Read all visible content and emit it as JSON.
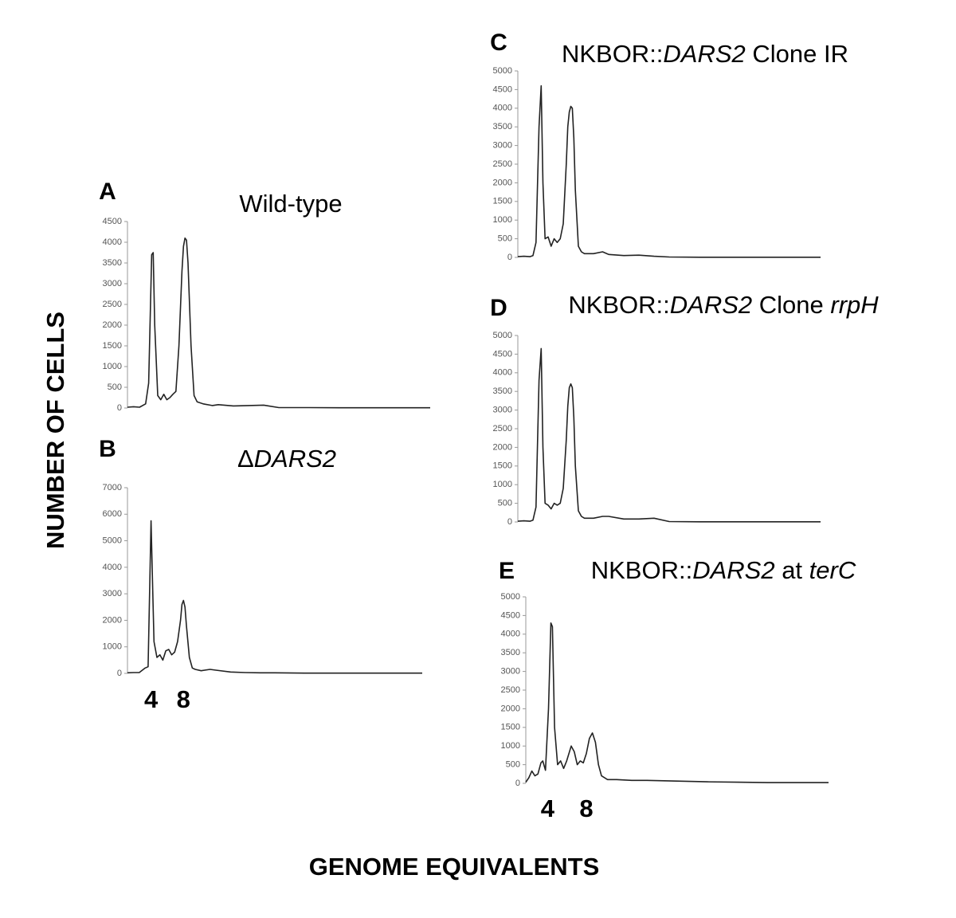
{
  "figure": {
    "ylabel": "NUMBER OF CELLS",
    "xlabel": "GENOME EQUIVALENTS"
  },
  "chart_data": [
    {
      "type": "line",
      "panel": "A",
      "title": [
        {
          "text": "Wild-type"
        }
      ],
      "xlim": [
        0,
        100
      ],
      "ylim": [
        0,
        4500
      ],
      "yticks": [
        0,
        500,
        1000,
        1500,
        2000,
        2500,
        3000,
        3500,
        4000,
        4500
      ],
      "color": "#222222",
      "x": [
        0,
        2,
        4,
        6,
        7,
        8,
        8.5,
        9,
        10,
        11,
        12,
        13,
        14,
        15,
        16,
        17,
        18,
        18.5,
        19,
        19.5,
        20,
        21,
        22,
        23,
        25,
        28,
        30,
        35,
        40,
        45,
        50,
        60,
        70,
        80,
        90,
        100
      ],
      "values": [
        20,
        30,
        20,
        100,
        600,
        3700,
        3750,
        2000,
        300,
        200,
        330,
        200,
        250,
        330,
        400,
        1500,
        3300,
        3900,
        4100,
        4050,
        3500,
        1500,
        300,
        150,
        100,
        60,
        80,
        50,
        60,
        70,
        10,
        10,
        5,
        5,
        5,
        5
      ],
      "annotations": []
    },
    {
      "type": "line",
      "panel": "B",
      "title": [
        {
          "text": "Δ"
        },
        {
          "text": "DARS2",
          "italic": true
        }
      ],
      "xlim": [
        0,
        100
      ],
      "ylim": [
        0,
        7000
      ],
      "yticks": [
        0,
        1000,
        2000,
        3000,
        4000,
        5000,
        6000,
        7000
      ],
      "color": "#222222",
      "x": [
        0,
        2,
        4,
        6,
        7,
        8,
        8.5,
        9,
        10,
        11,
        12,
        13,
        14,
        15,
        16,
        17,
        18,
        18.5,
        19,
        19.5,
        20,
        21,
        22,
        23,
        25,
        28,
        30,
        35,
        40,
        45,
        50,
        60,
        70,
        80,
        90,
        100
      ],
      "values": [
        20,
        30,
        30,
        200,
        250,
        5750,
        3500,
        1200,
        600,
        700,
        500,
        850,
        900,
        700,
        800,
        1200,
        2000,
        2600,
        2750,
        2500,
        1800,
        600,
        200,
        150,
        100,
        150,
        120,
        50,
        30,
        20,
        20,
        10,
        10,
        10,
        10,
        10
      ],
      "annotations": [
        {
          "text": "4",
          "x": 8
        },
        {
          "text": "8",
          "x": 19
        }
      ]
    },
    {
      "type": "line",
      "panel": "C",
      "title": [
        {
          "text": "NKBOR::"
        },
        {
          "text": "DARS2",
          "italic": true
        },
        {
          "text": " Clone IR"
        }
      ],
      "xlim": [
        0,
        100
      ],
      "ylim": [
        0,
        5000
      ],
      "yticks": [
        0,
        500,
        1000,
        1500,
        2000,
        2500,
        3000,
        3500,
        4000,
        4500,
        5000
      ],
      "color": "#222222",
      "x": [
        0,
        2,
        4,
        5,
        6,
        7,
        7.7,
        8.3,
        9,
        10,
        11,
        12,
        13,
        14,
        15,
        16,
        16.5,
        17,
        17.5,
        18,
        18.5,
        19,
        20,
        21,
        22,
        25,
        28,
        30,
        35,
        40,
        45,
        50,
        60,
        70,
        80,
        90,
        100
      ],
      "values": [
        20,
        30,
        20,
        50,
        400,
        3500,
        4600,
        2000,
        500,
        550,
        300,
        500,
        400,
        500,
        900,
        2500,
        3500,
        3900,
        4050,
        4000,
        3200,
        1800,
        300,
        150,
        100,
        100,
        150,
        80,
        50,
        60,
        30,
        10,
        5,
        5,
        5,
        5,
        5
      ],
      "annotations": []
    },
    {
      "type": "line",
      "panel": "D",
      "title": [
        {
          "text": "NKBOR::"
        },
        {
          "text": "DARS2",
          "italic": true
        },
        {
          "text": " Clone "
        },
        {
          "text": "rrpH",
          "italic": true
        }
      ],
      "xlim": [
        0,
        100
      ],
      "ylim": [
        0,
        5000
      ],
      "yticks": [
        0,
        500,
        1000,
        1500,
        2000,
        2500,
        3000,
        3500,
        4000,
        4500,
        5000
      ],
      "color": "#222222",
      "x": [
        0,
        2,
        4,
        5,
        6,
        7,
        7.7,
        8.3,
        9,
        10,
        11,
        12,
        13,
        14,
        15,
        16,
        16.5,
        17,
        17.5,
        18,
        18.5,
        19,
        20,
        21,
        22,
        25,
        28,
        30,
        35,
        40,
        45,
        50,
        60,
        70,
        80,
        90,
        100
      ],
      "values": [
        20,
        30,
        20,
        50,
        400,
        3800,
        4650,
        2000,
        500,
        450,
        350,
        500,
        450,
        500,
        900,
        2200,
        3100,
        3600,
        3700,
        3600,
        2800,
        1500,
        300,
        150,
        100,
        100,
        150,
        150,
        80,
        80,
        100,
        10,
        5,
        5,
        5,
        5,
        5
      ],
      "annotations": []
    },
    {
      "type": "line",
      "panel": "E",
      "title": [
        {
          "text": "NKBOR::"
        },
        {
          "text": "DARS2",
          "italic": true
        },
        {
          "text": " at "
        },
        {
          "text": "terC",
          "italic": true
        }
      ],
      "xlim": [
        0,
        100
      ],
      "ylim": [
        0,
        5000
      ],
      "yticks": [
        0,
        500,
        1000,
        1500,
        2000,
        2500,
        3000,
        3500,
        4000,
        4500,
        5000
      ],
      "color": "#222222",
      "x": [
        0,
        1,
        2,
        3,
        4,
        5,
        5.6,
        6.5,
        7.5,
        8.3,
        8.8,
        9.5,
        10.5,
        11.5,
        12.5,
        13.5,
        15,
        16,
        17,
        18,
        19,
        20,
        21,
        22,
        23,
        24,
        25,
        27,
        30,
        35,
        40,
        50,
        60,
        70,
        80,
        90,
        100
      ],
      "values": [
        30,
        150,
        330,
        200,
        250,
        550,
        600,
        350,
        2000,
        4300,
        4200,
        1500,
        500,
        600,
        400,
        600,
        1000,
        850,
        500,
        600,
        550,
        800,
        1200,
        1350,
        1100,
        500,
        200,
        100,
        100,
        80,
        80,
        60,
        40,
        30,
        20,
        20,
        20
      ],
      "annotations": [
        {
          "text": "4",
          "x": 7.2
        },
        {
          "text": "8",
          "x": 20
        }
      ]
    }
  ]
}
